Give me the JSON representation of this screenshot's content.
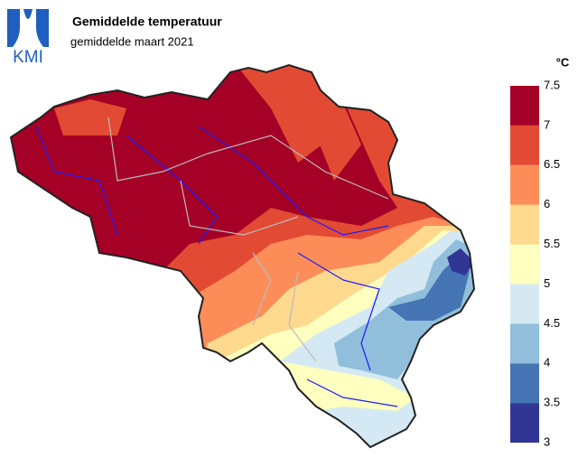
{
  "logo": "KMI",
  "title": "Gemiddelde temperatuur",
  "subtitle": "gemiddelde maart 2021",
  "legend": {
    "unit": "°C",
    "ticks": [
      3,
      3.5,
      4,
      4.5,
      5,
      5.5,
      6,
      6.5,
      7,
      7.5
    ],
    "colors": [
      "#313695",
      "#4575b4",
      "#91bfdb",
      "#d4e9f3",
      "#ffffbf",
      "#fed98e",
      "#fc8d59",
      "#e34a33",
      "#a50026"
    ]
  }
}
